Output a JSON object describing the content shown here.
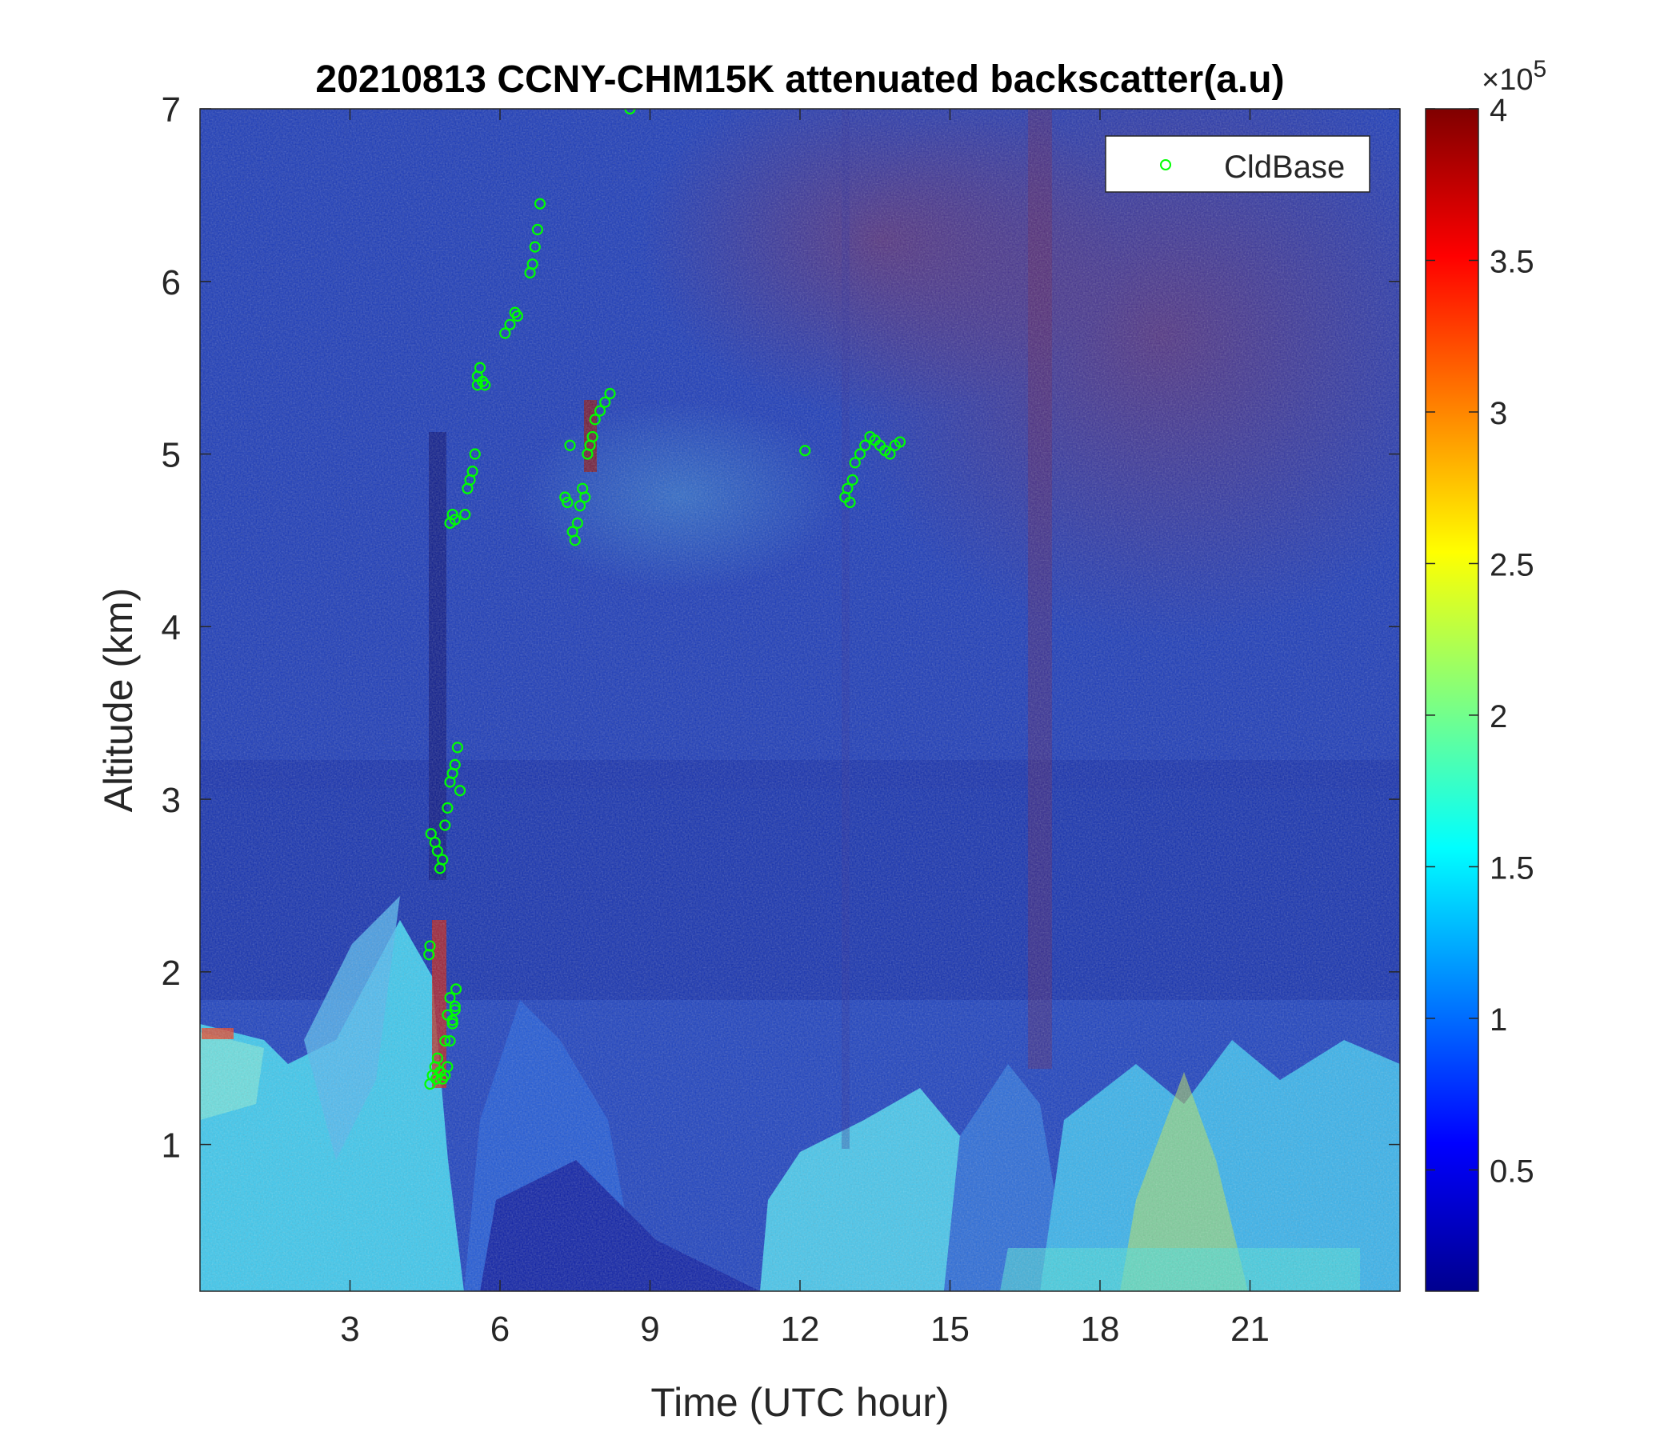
{
  "chart_data": {
    "type": "heatmap",
    "title": "20210813 CCNY-CHM15K attenuated backscatter(a.u)",
    "xlabel": "Time (UTC hour)",
    "ylabel": "Altitude (km)",
    "xlim": [
      0,
      24
    ],
    "ylim": [
      0.15,
      7
    ],
    "xticks": [
      3,
      6,
      9,
      12,
      15,
      18,
      21
    ],
    "xtick_labels": [
      "3",
      "6",
      "9",
      "12",
      "15",
      "18",
      "21"
    ],
    "yticks": [
      1,
      2,
      3,
      4,
      5,
      6,
      7
    ],
    "ytick_labels": [
      "1",
      "2",
      "3",
      "4",
      "5",
      "6",
      "7"
    ],
    "colorbar": {
      "colormap": "jet",
      "clim": [
        0.1,
        4
      ],
      "ticks": [
        0.5,
        1,
        1.5,
        2,
        2.5,
        3,
        3.5,
        4
      ],
      "tick_labels": [
        "0.5",
        "1",
        "1.5",
        "2",
        "2.5",
        "3",
        "3.5",
        "4"
      ],
      "multiplier_base": "×10",
      "multiplier_exp": "5"
    },
    "legend": {
      "position": "top-right",
      "entries": [
        "CldBase"
      ]
    },
    "series": [
      {
        "name": "CldBase",
        "marker": "open-circle",
        "color": "#00ff00",
        "x": [
          4.6,
          4.65,
          4.7,
          4.72,
          4.75,
          4.8,
          4.85,
          4.9,
          4.95,
          5.0,
          5.05,
          5.1,
          4.9,
          4.95,
          5.0,
          5.05,
          5.1,
          5.12,
          4.58,
          4.6,
          4.62,
          4.7,
          4.75,
          4.8,
          4.85,
          4.9,
          4.95,
          5.0,
          5.05,
          5.1,
          5.15,
          5.2,
          5.0,
          5.05,
          5.1,
          5.3,
          5.35,
          5.4,
          5.45,
          5.5,
          5.55,
          5.55,
          5.6,
          5.65,
          5.7,
          6.1,
          6.2,
          6.3,
          6.35,
          6.6,
          6.65,
          6.7,
          6.75,
          6.8,
          7.3,
          7.35,
          7.4,
          7.45,
          7.5,
          7.55,
          7.6,
          7.65,
          7.7,
          7.75,
          7.8,
          7.85,
          7.9,
          8.0,
          8.1,
          8.2,
          8.6,
          12.1,
          12.9,
          12.95,
          13.0,
          13.05,
          13.1,
          13.2,
          13.3,
          13.4,
          13.5,
          13.6,
          13.7,
          13.8,
          13.9,
          14.0
        ],
        "y": [
          1.35,
          1.4,
          1.45,
          1.38,
          1.5,
          1.42,
          1.38,
          1.4,
          1.45,
          1.6,
          1.7,
          1.8,
          1.6,
          1.75,
          1.85,
          1.72,
          1.78,
          1.9,
          2.1,
          2.15,
          2.8,
          2.75,
          2.7,
          2.6,
          2.65,
          2.85,
          2.95,
          3.1,
          3.15,
          3.2,
          3.3,
          3.05,
          4.6,
          4.65,
          4.62,
          4.65,
          4.8,
          4.85,
          4.9,
          5.0,
          5.4,
          5.45,
          5.5,
          5.42,
          5.4,
          5.7,
          5.75,
          5.82,
          5.8,
          6.05,
          6.1,
          6.2,
          6.3,
          6.45,
          4.75,
          4.72,
          5.05,
          4.55,
          4.5,
          4.6,
          4.7,
          4.8,
          4.75,
          5.0,
          5.05,
          5.1,
          5.2,
          5.25,
          5.3,
          5.35,
          7.0,
          5.02,
          4.75,
          4.8,
          4.72,
          4.85,
          4.95,
          5.0,
          5.05,
          5.1,
          5.08,
          5.05,
          5.02,
          5.0,
          5.05,
          5.07
        ]
      }
    ]
  }
}
